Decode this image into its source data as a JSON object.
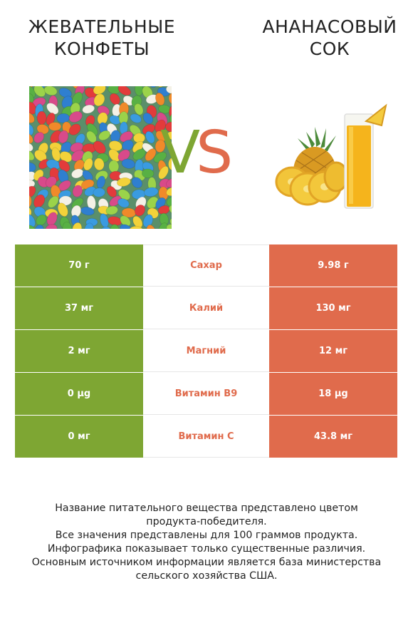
{
  "header": {
    "left_title": [
      "ЖЕВАТЕЛЬНЫЕ",
      "КОНФЕТЫ"
    ],
    "right_title": [
      "АНАНАСОВЫЙ",
      "СОК"
    ],
    "vs_v": "V",
    "vs_s": "S"
  },
  "colors": {
    "left": "#7ea633",
    "right": "#e06b4c"
  },
  "icons": {
    "left_image": "jelly-beans",
    "right_image": "pineapple-juice"
  },
  "table": [
    {
      "left": "70 г",
      "nutrient": "Сахар",
      "right": "9.98 г"
    },
    {
      "left": "37 мг",
      "nutrient": "Калий",
      "right": "130 мг"
    },
    {
      "left": "2 мг",
      "nutrient": "Магний",
      "right": "12 мг"
    },
    {
      "left": "0 µg",
      "nutrient": "Витамин B9",
      "right": "18 µg"
    },
    {
      "left": "0 мг",
      "nutrient": "Витамин C",
      "right": "43.8 мг"
    }
  ],
  "footer": [
    "Название питательного вещества представлено цветом",
    "продукта-победителя.",
    "Все значения представлены для 100 граммов продукта.",
    "Инфографика показывает только существенные различия.",
    "Основным источником информации является база министерства",
    "сельского хозяйства США."
  ]
}
